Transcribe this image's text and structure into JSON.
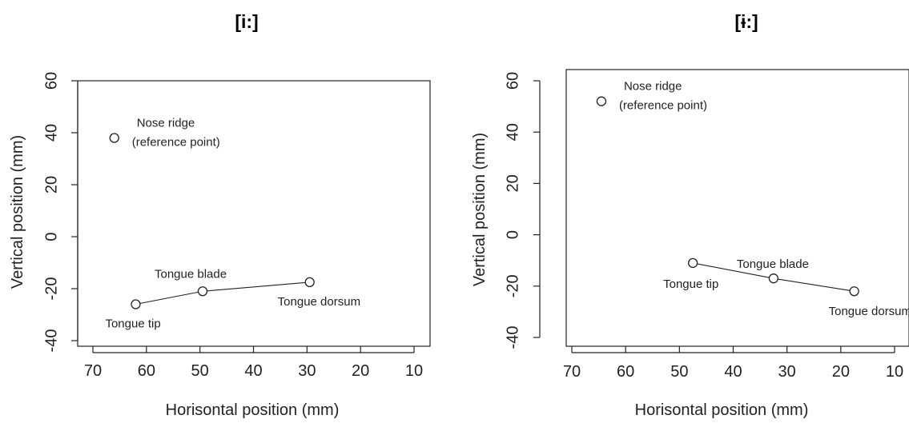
{
  "chart_data": [
    {
      "type": "scatter",
      "title": "[i:]",
      "xlabel": "Horisontal  position (mm)",
      "ylabel": "Vertical  position (mm)",
      "xlim": [
        73,
        4
      ],
      "ylim": [
        -41,
        62
      ],
      "x_axis_reversed": true,
      "x_ticks": [
        "70",
        "60",
        "50",
        "40",
        "30",
        "20",
        "10"
      ],
      "y_ticks": [
        "-40",
        "-20",
        "0",
        "20",
        "40",
        "60"
      ],
      "grid": false,
      "frame": "full",
      "points": [
        {
          "x": 66,
          "y": 38,
          "label_lines": [
            "Nose ridge",
            "(reference point)"
          ],
          "label_side": "right"
        },
        {
          "x": 62,
          "y": -26,
          "label_lines": [
            "Tongue tip"
          ],
          "label_side": "below"
        },
        {
          "x": 49.5,
          "y": -21,
          "label_lines": [
            "Tongue blade"
          ],
          "label_side": "above"
        },
        {
          "x": 29.5,
          "y": -17.5,
          "label_lines": [
            "Tongue dorsum"
          ],
          "label_side": "below"
        }
      ],
      "connected": [
        1,
        2,
        3
      ]
    },
    {
      "type": "scatter",
      "title": "[ɨ:]",
      "xlabel": "Horisontal  position (mm)",
      "ylabel": "Vertical  position (mm)",
      "xlim": [
        73,
        5
      ],
      "ylim": [
        -42,
        63
      ],
      "x_axis_reversed": true,
      "x_ticks": [
        "70",
        "60",
        "50",
        "40",
        "30",
        "20",
        "10"
      ],
      "y_ticks": [
        "-40",
        "-20",
        "0",
        "20",
        "40",
        "60"
      ],
      "grid": false,
      "frame": "full",
      "points": [
        {
          "x": 64.5,
          "y": 52,
          "label_lines": [
            "Nose ridge",
            "(reference point)"
          ],
          "label_side": "right"
        },
        {
          "x": 47.5,
          "y": -11,
          "label_lines": [
            "Tongue tip"
          ],
          "label_side": "below"
        },
        {
          "x": 32.5,
          "y": -17,
          "label_lines": [
            "Tongue blade"
          ],
          "label_side": "above"
        },
        {
          "x": 17.5,
          "y": -22,
          "label_lines": [
            "Tongue dorsum"
          ],
          "label_side": "below"
        }
      ],
      "connected": [
        1,
        2,
        3
      ]
    }
  ]
}
